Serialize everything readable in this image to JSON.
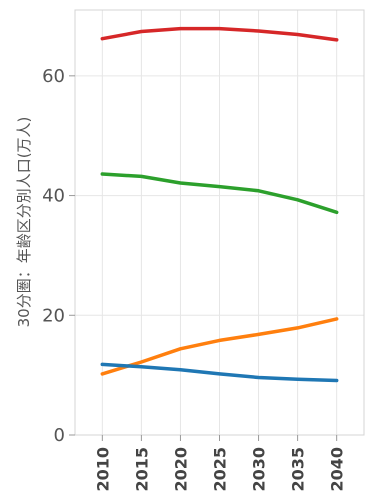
{
  "chart_data": {
    "type": "line",
    "x": [
      2010,
      2015,
      2020,
      2025,
      2030,
      2035,
      2040
    ],
    "x_ticks": [
      "2010",
      "2015",
      "2020",
      "2025",
      "2030",
      "2035",
      "2040"
    ],
    "y_ticks": [
      "0",
      "20",
      "40",
      "60"
    ],
    "ylabel": "30分圏：年齢区分別人口(万人)",
    "xlabel": "",
    "title": "",
    "ylim": [
      0,
      71
    ],
    "xlim": [
      2006.5,
      2043.5
    ],
    "grid": true,
    "legend": "none",
    "series": [
      {
        "color": "#d62728",
        "values": [
          66.2,
          67.4,
          67.9,
          67.9,
          67.5,
          66.9,
          66.0
        ]
      },
      {
        "color": "#2ca02c",
        "values": [
          43.6,
          43.2,
          42.1,
          41.5,
          40.8,
          39.3,
          37.2
        ]
      },
      {
        "color": "#ff7f0e",
        "values": [
          10.2,
          12.2,
          14.4,
          15.8,
          16.8,
          17.9,
          19.4
        ]
      },
      {
        "color": "#1f77b4",
        "values": [
          11.8,
          11.4,
          10.9,
          10.2,
          9.6,
          9.3,
          9.1
        ]
      }
    ]
  }
}
